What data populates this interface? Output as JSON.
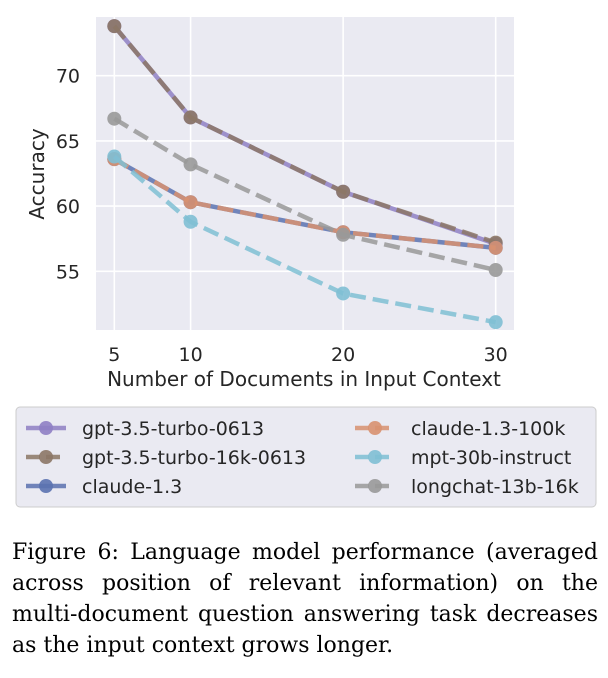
{
  "chart_data": {
    "type": "line",
    "x": [
      5,
      10,
      20,
      30
    ],
    "xlabel": "Number of Documents in Input Context",
    "ylabel": "Accuracy",
    "xlim": [
      3.8,
      31.2
    ],
    "ylim": [
      50.5,
      74.5
    ],
    "xticks": [
      5,
      10,
      20,
      30
    ],
    "yticks": [
      55,
      60,
      65,
      70
    ],
    "grid": true,
    "legend_position": "bottom",
    "series": [
      {
        "name": "gpt-3.5-turbo-0613",
        "values": [
          73.8,
          66.8,
          61.1,
          57.1
        ],
        "color": "#8f80c4",
        "dash": "solid"
      },
      {
        "name": "gpt-3.5-turbo-16k-0613",
        "values": [
          73.8,
          66.8,
          61.1,
          57.2
        ],
        "color": "#8c7766",
        "dash": "dashed"
      },
      {
        "name": "claude-1.3",
        "values": [
          63.6,
          60.3,
          58.0,
          56.8
        ],
        "color": "#5b72b0",
        "dash": "solid"
      },
      {
        "name": "claude-1.3-100k",
        "values": [
          63.6,
          60.3,
          58.0,
          56.8
        ],
        "color": "#d89170",
        "dash": "dashed"
      },
      {
        "name": "mpt-30b-instruct",
        "values": [
          63.8,
          58.8,
          53.3,
          51.1
        ],
        "color": "#7fbfd4",
        "dash": "dashed"
      },
      {
        "name": "longchat-13b-16k",
        "values": [
          66.7,
          63.2,
          57.8,
          55.1
        ],
        "color": "#999999",
        "dash": "dashed"
      }
    ]
  },
  "caption": "Figure 6: Language model performance (averaged across position of relevant information) on the multi-document question answering task decreases as the input context grows longer."
}
